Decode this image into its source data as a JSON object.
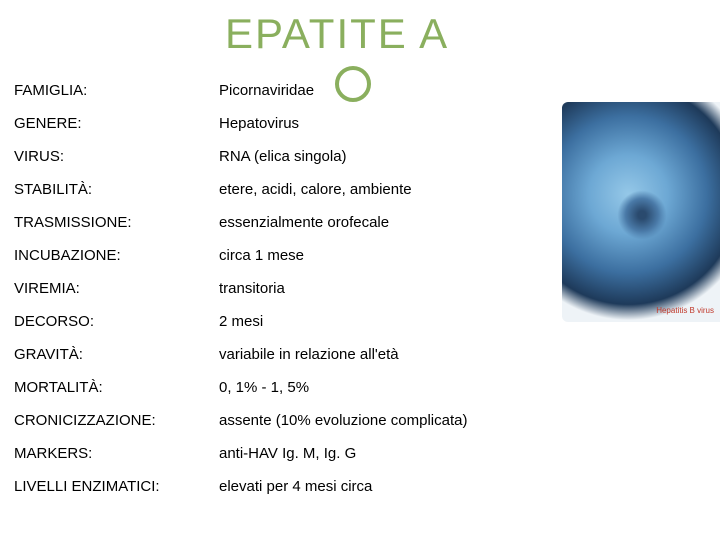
{
  "title": "EPATITE A",
  "rows": [
    {
      "label": "FAMIGLIA:",
      "value": "Picornaviridae"
    },
    {
      "label": "GENERE:",
      "value": "Hepatovirus"
    },
    {
      "label": "VIRUS:",
      "value": "RNA (elica singola)"
    },
    {
      "label": "STABILITÀ:",
      "value": "etere, acidi, calore, ambiente"
    },
    {
      "label": "TRASMISSIONE:",
      "value": "essenzialmente orofecale"
    },
    {
      "label": "INCUBAZIONE:",
      "value": "circa 1 mese"
    },
    {
      "label": "VIREMIA:",
      "value": "transitoria"
    },
    {
      "label": "DECORSO:",
      "value": "2 mesi"
    },
    {
      "label": "GRAVITÀ:",
      "value": "variabile in relazione all'età"
    },
    {
      "label": "MORTALITÀ:",
      "value": "0, 1% - 1, 5%"
    },
    {
      "label": "CRONICIZZAZIONE:",
      "value": "assente (10% evoluzione complicata)"
    },
    {
      "label": "MARKERS:",
      "value": "anti-HAV Ig. M, Ig. G"
    },
    {
      "label": "LIVELLI ENZIMATICI:",
      "value": "elevati per 4 mesi circa"
    }
  ],
  "styles": {
    "title_color": "#8aaf5e",
    "title_fontsize": 42,
    "text_color": "#000000",
    "text_fontsize": 15,
    "background": "#ffffff",
    "label_col_width": 205,
    "row_padding": 8
  }
}
